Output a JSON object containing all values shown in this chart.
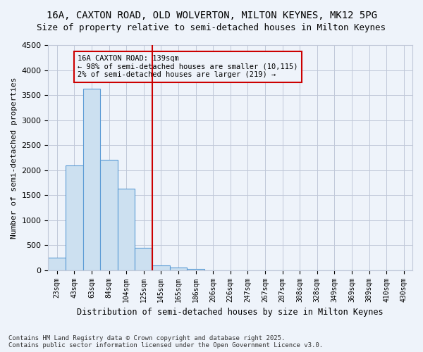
{
  "title1": "16A, CAXTON ROAD, OLD WOLVERTON, MILTON KEYNES, MK12 5PG",
  "title2": "Size of property relative to semi-detached houses in Milton Keynes",
  "xlabel": "Distribution of semi-detached houses by size in Milton Keynes",
  "ylabel": "Number of semi-detached properties",
  "bin_labels": [
    "23sqm",
    "43sqm",
    "63sqm",
    "84sqm",
    "104sqm",
    "125sqm",
    "145sqm",
    "165sqm",
    "186sqm",
    "206sqm",
    "226sqm",
    "247sqm",
    "267sqm",
    "287sqm",
    "308sqm",
    "328sqm",
    "349sqm",
    "369sqm",
    "389sqm",
    "410sqm",
    "430sqm"
  ],
  "bar_values": [
    250,
    2100,
    3625,
    2200,
    1625,
    450,
    100,
    55,
    30,
    0,
    0,
    0,
    0,
    0,
    0,
    0,
    0,
    0,
    0,
    0,
    0
  ],
  "bar_color": "#cce0f0",
  "bar_edge_color": "#5b9bd5",
  "vline_x": 5.5,
  "vline_color": "#cc0000",
  "annotation_title": "16A CAXTON ROAD: 139sqm",
  "annotation_line1": "← 98% of semi-detached houses are smaller (10,115)",
  "annotation_line2": "2% of semi-detached houses are larger (219) →",
  "annotation_box_color": "#cc0000",
  "ylim": [
    0,
    4500
  ],
  "yticks": [
    0,
    500,
    1000,
    1500,
    2000,
    2500,
    3000,
    3500,
    4000,
    4500
  ],
  "footer1": "Contains HM Land Registry data © Crown copyright and database right 2025.",
  "footer2": "Contains public sector information licensed under the Open Government Licence v3.0.",
  "bg_color": "#eef3fa",
  "grid_color": "#c0c8d8",
  "title_fontsize": 10,
  "subtitle_fontsize": 9
}
